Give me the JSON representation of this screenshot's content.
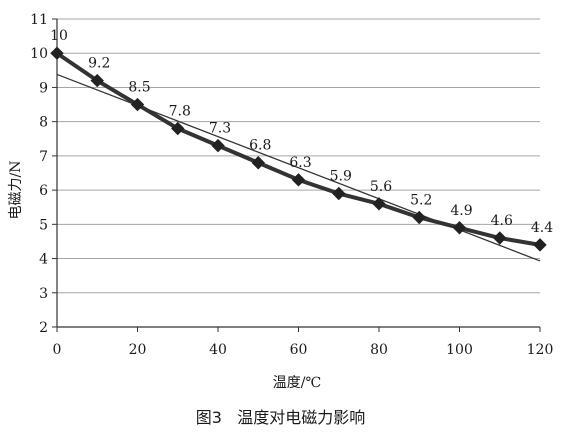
{
  "caption": "图3   温度对电磁力影响",
  "chart_data": {
    "type": "line",
    "xlabel": "温度/℃",
    "ylabel": "电磁力/N",
    "xlim": [
      0,
      120
    ],
    "ylim": [
      2,
      11
    ],
    "x_ticks": [
      "0",
      "20",
      "40",
      "60",
      "80",
      "100",
      "120"
    ],
    "y_ticks": [
      "2",
      "3",
      "4",
      "5",
      "6",
      "7",
      "8",
      "9",
      "10",
      "11"
    ],
    "grid": "horizontal",
    "legend": "none",
    "series": [
      {
        "marker": "diamond",
        "color": "#333333",
        "x": [
          0,
          10,
          20,
          30,
          40,
          50,
          60,
          70,
          80,
          90,
          100,
          110,
          120
        ],
        "y": [
          10,
          9.2,
          8.5,
          7.8,
          7.3,
          6.8,
          6.3,
          5.9,
          5.6,
          5.2,
          4.9,
          4.6,
          4.4
        ],
        "labels": [
          "10",
          "9.2",
          "8.5",
          "7.8",
          "7.3",
          "6.8",
          "6.3",
          "5.9",
          "5.6",
          "5.2",
          "4.9",
          "4.6",
          "4.4"
        ]
      }
    ],
    "trendline": {
      "type": "linear",
      "color": "#333333",
      "x": [
        0,
        120
      ],
      "y": [
        9.38,
        3.93
      ]
    }
  }
}
